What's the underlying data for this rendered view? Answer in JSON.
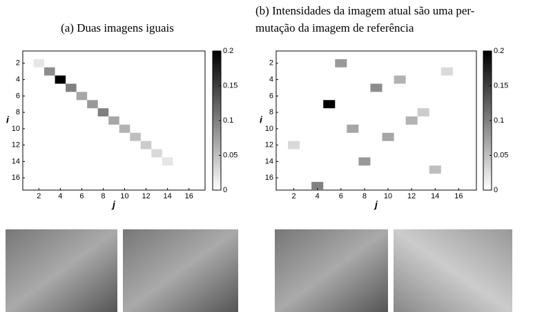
{
  "chart_data": [
    {
      "type": "heatmap",
      "title": [
        "(a) Duas imagens iguais"
      ],
      "xlabel": "j",
      "ylabel": "i",
      "x": [
        2,
        3,
        4,
        5,
        6,
        7,
        8,
        9,
        10,
        11,
        12,
        13,
        14
      ],
      "y": [
        2,
        3,
        4,
        5,
        6,
        7,
        8,
        9,
        10,
        11,
        12,
        13,
        14
      ],
      "values": [
        0.02,
        0.09,
        0.2,
        0.1,
        0.07,
        0.08,
        0.1,
        0.07,
        0.06,
        0.05,
        0.04,
        0.03,
        0.02
      ],
      "xlim": [
        0.5,
        17.5
      ],
      "ylim": [
        0.5,
        17.5
      ],
      "y_inverted": true,
      "xticks": [
        2,
        4,
        6,
        8,
        10,
        12,
        14,
        16
      ],
      "yticks": [
        2,
        4,
        6,
        8,
        10,
        12,
        14,
        16
      ],
      "colormap": "gray_r",
      "clim": [
        0,
        0.2
      ],
      "cticks": [
        0,
        0.05,
        0.1,
        0.15,
        0.2
      ]
    },
    {
      "type": "heatmap",
      "title": [
        "(b) Intensidades da imagem atual são uma per-",
        "mutação da imagem de referência"
      ],
      "xlabel": "j",
      "ylabel": "i",
      "x": [
        6,
        15,
        11,
        9,
        5,
        13,
        12,
        7,
        10,
        2,
        8,
        14,
        4
      ],
      "y": [
        2,
        3,
        4,
        5,
        7,
        8,
        9,
        10,
        11,
        12,
        14,
        15,
        17
      ],
      "values": [
        0.08,
        0.03,
        0.06,
        0.09,
        0.2,
        0.04,
        0.06,
        0.07,
        0.07,
        0.03,
        0.08,
        0.05,
        0.1
      ],
      "xlim": [
        0.5,
        17.5
      ],
      "ylim": [
        0.5,
        17.5
      ],
      "y_inverted": true,
      "xticks": [
        2,
        4,
        6,
        8,
        10,
        12,
        14,
        16
      ],
      "yticks": [
        2,
        4,
        6,
        8,
        10,
        12,
        14,
        16
      ],
      "colormap": "gray_r",
      "clim": [
        0,
        0.2
      ],
      "cticks": [
        0,
        0.05,
        0.1,
        0.15,
        0.2
      ]
    }
  ]
}
